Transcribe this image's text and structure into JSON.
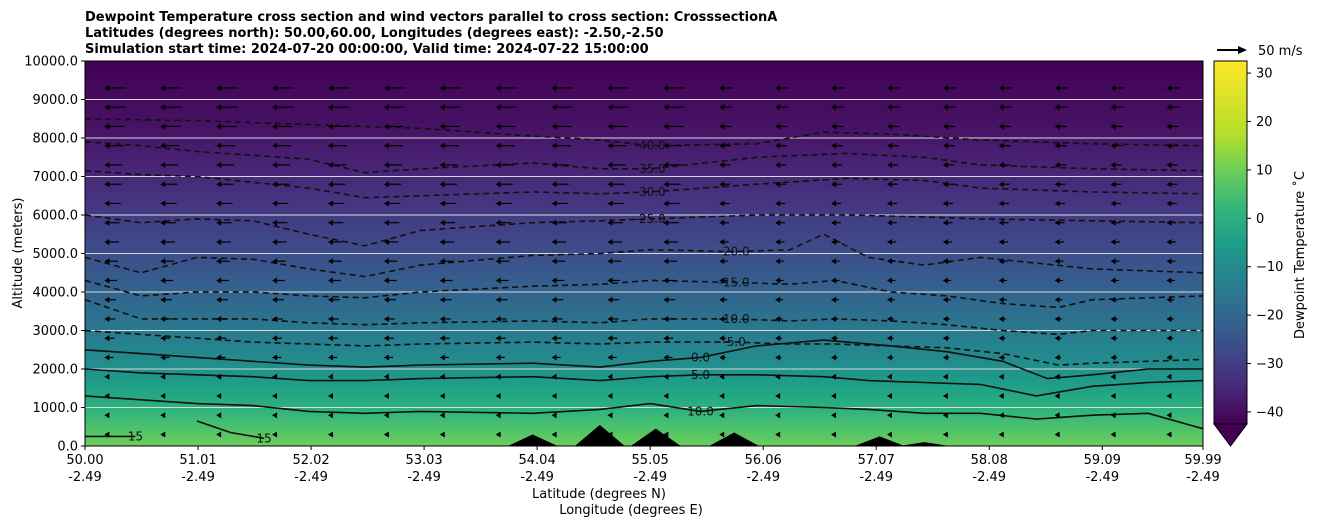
{
  "chart_data": {
    "type": "contour",
    "title": [
      "Dewpoint Temperature cross section and wind vectors parallel to cross section: CrosssectionA",
      "Latitudes (degrees north): 50.00,60.00, Longitudes (degrees east): -2.50,-2.50",
      "Simulation start time: 2024-07-20 00:00:00, Valid time: 2024-07-22 15:00:00"
    ],
    "xlabel": "Latitude (degrees N)",
    "xlabel2": "Longitude (degrees E)",
    "ylabel": "Altitude (meters)",
    "xlim": [
      50.0,
      59.99
    ],
    "ylim": [
      0,
      10000
    ],
    "x_ticks": [
      {
        "lat": "50.00",
        "lon": "-2.49",
        "value": 50.0
      },
      {
        "lat": "51.01",
        "lon": "-2.49",
        "value": 51.01
      },
      {
        "lat": "52.02",
        "lon": "-2.49",
        "value": 52.02
      },
      {
        "lat": "53.03",
        "lon": "-2.49",
        "value": 53.03
      },
      {
        "lat": "54.04",
        "lon": "-2.49",
        "value": 54.04
      },
      {
        "lat": "55.05",
        "lon": "-2.49",
        "value": 55.05
      },
      {
        "lat": "56.06",
        "lon": "-2.49",
        "value": 56.06
      },
      {
        "lat": "57.07",
        "lon": "-2.49",
        "value": 57.07
      },
      {
        "lat": "58.08",
        "lon": "-2.49",
        "value": 58.08
      },
      {
        "lat": "59.09",
        "lon": "-2.49",
        "value": 59.09
      },
      {
        "lat": "59.99",
        "lon": "-2.49",
        "value": 59.99
      }
    ],
    "y_ticks": [
      "0.0",
      "1000.0",
      "2000.0",
      "3000.0",
      "4000.0",
      "5000.0",
      "6000.0",
      "7000.0",
      "8000.0",
      "9000.0",
      "10000.0"
    ],
    "y_tick_values": [
      0,
      1000,
      2000,
      3000,
      4000,
      5000,
      6000,
      7000,
      8000,
      9000,
      10000
    ],
    "grid": "horizontal",
    "colorbar": {
      "label": "Dewpoint Temperature ˚C",
      "ticks": [
        "−40",
        "−30",
        "−20",
        "−10",
        "0",
        "10",
        "20",
        "30"
      ],
      "tick_values": [
        -40,
        -30,
        -20,
        -10,
        0,
        10,
        20,
        30
      ],
      "range": [
        -42.5,
        32.5
      ],
      "extend": "min",
      "colormap": "viridis"
    },
    "quiver_key": {
      "label": "50 m/s",
      "speed": 50
    },
    "contour_levels": [
      {
        "level": -40,
        "label": "-40.0",
        "style": "dashed",
        "points": [
          [
            50.0,
            8500
          ],
          [
            51.0,
            8450
          ],
          [
            52.0,
            8350
          ],
          [
            53.0,
            8250
          ],
          [
            54.0,
            8050
          ],
          [
            54.6,
            7950
          ],
          [
            55.05,
            7800
          ],
          [
            56.0,
            7850
          ],
          [
            56.6,
            8150
          ],
          [
            57.2,
            8100
          ],
          [
            58.0,
            7950
          ],
          [
            59.0,
            7850
          ],
          [
            59.99,
            7800
          ]
        ]
      },
      {
        "level": -35,
        "label": "-35.0",
        "style": "dashed",
        "points": [
          [
            50.0,
            7900
          ],
          [
            50.5,
            7800
          ],
          [
            51.0,
            7650
          ],
          [
            51.5,
            7550
          ],
          [
            52.0,
            7450
          ],
          [
            52.5,
            7100
          ],
          [
            53.0,
            7200
          ],
          [
            54.0,
            7350
          ],
          [
            54.6,
            7200
          ],
          [
            55.05,
            7200
          ],
          [
            56.0,
            7500
          ],
          [
            56.8,
            7600
          ],
          [
            57.5,
            7500
          ],
          [
            58.0,
            7300
          ],
          [
            59.0,
            7200
          ],
          [
            59.99,
            7150
          ]
        ]
      },
      {
        "level": -30,
        "label": "-30.0",
        "style": "dashed",
        "points": [
          [
            50.0,
            7150
          ],
          [
            50.5,
            7050
          ],
          [
            51.0,
            7000
          ],
          [
            51.5,
            6850
          ],
          [
            52.0,
            6700
          ],
          [
            52.5,
            6450
          ],
          [
            53.0,
            6500
          ],
          [
            54.0,
            6600
          ],
          [
            54.6,
            6550
          ],
          [
            55.05,
            6600
          ],
          [
            56.0,
            6800
          ],
          [
            56.8,
            6950
          ],
          [
            57.5,
            6900
          ],
          [
            58.0,
            6700
          ],
          [
            59.0,
            6600
          ],
          [
            59.99,
            6550
          ]
        ]
      },
      {
        "level": -25,
        "label": "-25.0",
        "style": "dashed",
        "points": [
          [
            50.0,
            6000
          ],
          [
            50.5,
            5800
          ],
          [
            51.0,
            5900
          ],
          [
            51.5,
            5850
          ],
          [
            52.0,
            5500
          ],
          [
            52.5,
            5200
          ],
          [
            53.0,
            5600
          ],
          [
            54.0,
            5800
          ],
          [
            54.6,
            5850
          ],
          [
            55.05,
            5900
          ],
          [
            56.0,
            6000
          ],
          [
            56.8,
            6000
          ],
          [
            57.5,
            5950
          ],
          [
            58.0,
            5900
          ],
          [
            59.0,
            5850
          ],
          [
            59.99,
            5800
          ]
        ]
      },
      {
        "level": -20,
        "label": "-20.0",
        "style": "dashed",
        "points": [
          [
            50.0,
            4900
          ],
          [
            50.5,
            4500
          ],
          [
            51.0,
            4900
          ],
          [
            51.5,
            4850
          ],
          [
            52.0,
            4600
          ],
          [
            52.5,
            4400
          ],
          [
            53.0,
            4700
          ],
          [
            54.0,
            4950
          ],
          [
            54.6,
            5000
          ],
          [
            55.05,
            5100
          ],
          [
            55.8,
            5050
          ],
          [
            56.3,
            5100
          ],
          [
            56.6,
            5500
          ],
          [
            57.0,
            4900
          ],
          [
            57.5,
            4700
          ],
          [
            58.0,
            4900
          ],
          [
            58.5,
            4750
          ],
          [
            59.0,
            4600
          ],
          [
            59.99,
            4500
          ]
        ]
      },
      {
        "level": -15,
        "label": "-15.0",
        "style": "dashed",
        "points": [
          [
            50.0,
            4300
          ],
          [
            50.5,
            3900
          ],
          [
            51.0,
            4000
          ],
          [
            51.5,
            4000
          ],
          [
            52.0,
            3900
          ],
          [
            52.5,
            3850
          ],
          [
            53.0,
            4000
          ],
          [
            54.0,
            4150
          ],
          [
            54.6,
            4200
          ],
          [
            55.05,
            4300
          ],
          [
            55.8,
            4250
          ],
          [
            56.3,
            4200
          ],
          [
            56.7,
            4300
          ],
          [
            57.2,
            4000
          ],
          [
            57.7,
            3900
          ],
          [
            58.2,
            3700
          ],
          [
            58.7,
            3600
          ],
          [
            59.0,
            3800
          ],
          [
            59.99,
            3900
          ]
        ]
      },
      {
        "level": -10,
        "label": "-10.0",
        "style": "dashed",
        "points": [
          [
            50.0,
            3800
          ],
          [
            50.5,
            3300
          ],
          [
            51.0,
            3300
          ],
          [
            51.5,
            3300
          ],
          [
            52.0,
            3200
          ],
          [
            52.5,
            3150
          ],
          [
            53.0,
            3200
          ],
          [
            54.0,
            3250
          ],
          [
            54.6,
            3200
          ],
          [
            55.05,
            3300
          ],
          [
            55.8,
            3300
          ],
          [
            56.3,
            3250
          ],
          [
            56.7,
            3300
          ],
          [
            57.2,
            3250
          ],
          [
            57.7,
            3150
          ],
          [
            58.2,
            3000
          ],
          [
            58.7,
            2900
          ],
          [
            59.0,
            3000
          ],
          [
            59.99,
            3000
          ]
        ]
      },
      {
        "level": -5,
        "label": "-5.0",
        "style": "dashed",
        "points": [
          [
            50.0,
            3000
          ],
          [
            50.5,
            2900
          ],
          [
            51.0,
            2800
          ],
          [
            51.5,
            2700
          ],
          [
            52.0,
            2650
          ],
          [
            52.5,
            2600
          ],
          [
            53.0,
            2650
          ],
          [
            54.0,
            2700
          ],
          [
            54.6,
            2650
          ],
          [
            55.05,
            2700
          ],
          [
            55.8,
            2700
          ],
          [
            56.3,
            2650
          ],
          [
            56.7,
            2650
          ],
          [
            57.2,
            2600
          ],
          [
            57.7,
            2550
          ],
          [
            58.2,
            2400
          ],
          [
            58.7,
            2100
          ],
          [
            59.0,
            2150
          ],
          [
            59.99,
            2250
          ]
        ]
      },
      {
        "level": 0,
        "label": "0.0",
        "style": "solid",
        "points": [
          [
            50.0,
            2500
          ],
          [
            50.5,
            2400
          ],
          [
            51.0,
            2300
          ],
          [
            51.5,
            2200
          ],
          [
            52.0,
            2100
          ],
          [
            52.5,
            2050
          ],
          [
            53.0,
            2100
          ],
          [
            54.0,
            2150
          ],
          [
            54.6,
            2050
          ],
          [
            55.05,
            2200
          ],
          [
            55.5,
            2300
          ],
          [
            56.0,
            2600
          ],
          [
            56.6,
            2750
          ],
          [
            57.2,
            2600
          ],
          [
            57.7,
            2450
          ],
          [
            58.2,
            2200
          ],
          [
            58.6,
            1750
          ],
          [
            59.0,
            1850
          ],
          [
            59.5,
            2000
          ],
          [
            59.99,
            2000
          ]
        ]
      },
      {
        "level": 5,
        "label": "5.0",
        "style": "solid",
        "points": [
          [
            50.0,
            2000
          ],
          [
            50.5,
            1900
          ],
          [
            51.0,
            1850
          ],
          [
            51.5,
            1800
          ],
          [
            52.0,
            1700
          ],
          [
            52.5,
            1700
          ],
          [
            53.0,
            1750
          ],
          [
            54.0,
            1800
          ],
          [
            54.6,
            1700
          ],
          [
            55.05,
            1800
          ],
          [
            55.5,
            1850
          ],
          [
            56.0,
            1850
          ],
          [
            56.6,
            1800
          ],
          [
            57.0,
            1700
          ],
          [
            57.5,
            1650
          ],
          [
            58.0,
            1600
          ],
          [
            58.5,
            1300
          ],
          [
            59.0,
            1550
          ],
          [
            59.5,
            1650
          ],
          [
            59.99,
            1700
          ]
        ]
      },
      {
        "level": 10,
        "label": "10.0",
        "style": "solid",
        "points": [
          [
            50.0,
            1300
          ],
          [
            50.5,
            1200
          ],
          [
            51.0,
            1100
          ],
          [
            51.5,
            1050
          ],
          [
            52.0,
            900
          ],
          [
            52.5,
            850
          ],
          [
            53.0,
            900
          ],
          [
            54.0,
            850
          ],
          [
            54.6,
            950
          ],
          [
            55.05,
            1100
          ],
          [
            55.5,
            900
          ],
          [
            56.0,
            1050
          ],
          [
            56.6,
            1000
          ],
          [
            57.0,
            950
          ],
          [
            57.5,
            850
          ],
          [
            58.0,
            850
          ],
          [
            58.5,
            700
          ],
          [
            59.0,
            800
          ],
          [
            59.5,
            850
          ],
          [
            59.99,
            450
          ]
        ]
      },
      {
        "level": 15,
        "label": "15",
        "style": "solid",
        "points": [
          [
            50.0,
            250
          ],
          [
            50.45,
            250
          ]
        ]
      },
      {
        "level": 15,
        "label": "15",
        "style": "solid",
        "points": [
          [
            51.0,
            650
          ],
          [
            51.3,
            350
          ],
          [
            51.6,
            200
          ]
        ]
      }
    ],
    "orography_peaks": [
      [
        54.0,
        300
      ],
      [
        54.6,
        550
      ],
      [
        55.1,
        450
      ],
      [
        55.8,
        350
      ],
      [
        57.1,
        250
      ],
      [
        57.5,
        100
      ]
    ]
  }
}
